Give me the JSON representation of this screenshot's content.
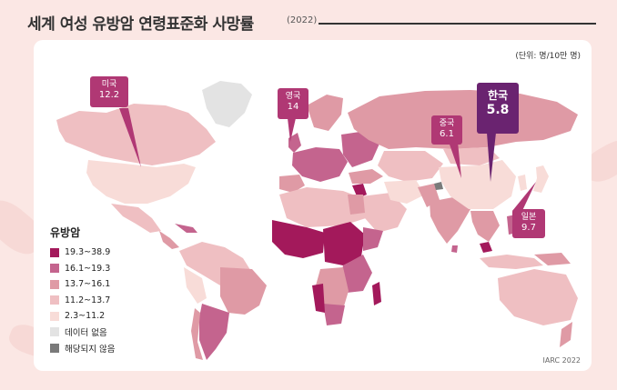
{
  "title": "세계 여성 유방암 연령표준화 사망률",
  "year": "(2022)",
  "unit": "(단위: 명/10만 명)",
  "credit": "IARC 2022",
  "callouts": [
    {
      "id": "usa",
      "name": "미국",
      "value": "12.2",
      "color": "#b03874"
    },
    {
      "id": "uk",
      "name": "영국",
      "value": "14",
      "color": "#b03874"
    },
    {
      "id": "china",
      "name": "중국",
      "value": "6.1",
      "color": "#b03874"
    },
    {
      "id": "korea",
      "name": "한국",
      "value": "5.8",
      "color": "#6a2370"
    },
    {
      "id": "japan",
      "name": "일본",
      "value": "9.7",
      "color": "#b03874"
    }
  ],
  "legend": {
    "title": "유방암",
    "items": [
      {
        "label": "19.3~38.9",
        "color": "#a3195b"
      },
      {
        "label": "16.1~19.3",
        "color": "#c4648e"
      },
      {
        "label": "13.7~16.1",
        "color": "#df9aa5"
      },
      {
        "label": "11.2~13.7",
        "color": "#efbfc2"
      },
      {
        "label": "2.3~11.2",
        "color": "#f8dcd8"
      },
      {
        "label": "데이터 없음",
        "color": "#e3e3e3"
      },
      {
        "label": "해당되지 않음",
        "color": "#7a7a7a"
      }
    ]
  }
}
